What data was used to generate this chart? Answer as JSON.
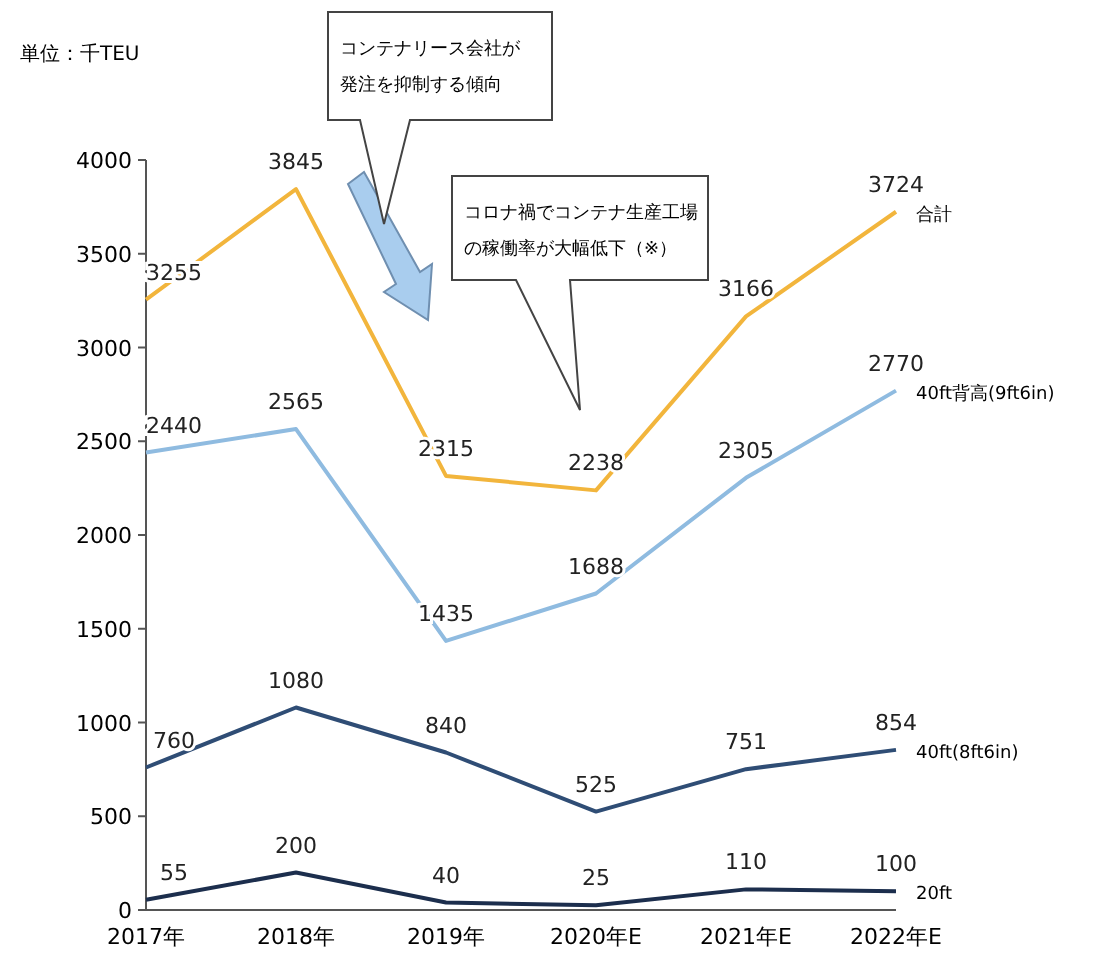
{
  "chart_data": {
    "type": "line",
    "ylabel": "単位：千TEU",
    "categories": [
      "2017年",
      "2018年",
      "2019年",
      "2020年E",
      "2021年E",
      "2022年E"
    ],
    "series": [
      {
        "name": "合計",
        "color": "#f2b53c",
        "values": [
          3255,
          3845,
          2315,
          2238,
          3166,
          3724
        ]
      },
      {
        "name": "40ft背高(9ft6in)",
        "color": "#8fbbe0",
        "values": [
          2440,
          2565,
          1435,
          1688,
          2305,
          2770
        ]
      },
      {
        "name": "40ft(8ft6in)",
        "color": "#2f4d75",
        "values": [
          760,
          1080,
          840,
          525,
          751,
          854
        ]
      },
      {
        "name": "20ft",
        "color": "#1c2e4d",
        "values": [
          55,
          200,
          40,
          25,
          110,
          100
        ]
      }
    ],
    "ylim": [
      0,
      4000
    ],
    "yticks": [
      0,
      500,
      1000,
      1500,
      2000,
      2500,
      3000,
      3500,
      4000
    ],
    "data_labels": true,
    "grid": false,
    "legend": false,
    "marker": "none",
    "line_style": "solid",
    "annotations": [
      "コンテナリース会社が発注を抑制する傾向",
      "コロナ禍でコンテナ生産工場の稼働率が大幅低下（※）"
    ]
  }
}
